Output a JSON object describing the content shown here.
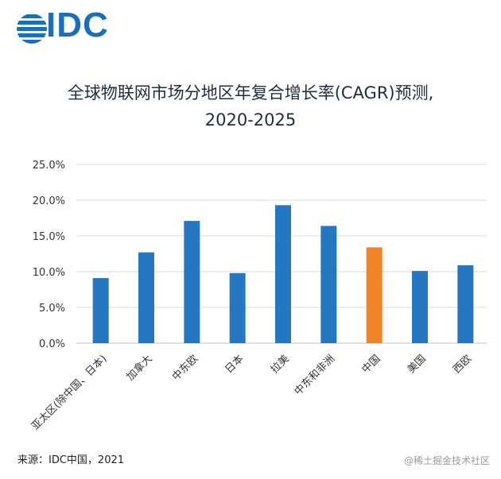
{
  "logo": {
    "text": "IDC",
    "color": "#1c6fb7"
  },
  "chart_data": {
    "type": "bar",
    "title_line1": "全球物联网市场分地区年复合增长率(CAGR)预测,",
    "title_line2": "2020-2025",
    "categories": [
      "亚太区(除中国、日本)",
      "加拿大",
      "中东欧",
      "日本",
      "拉美",
      "中东和非洲",
      "中国",
      "美国",
      "西欧"
    ],
    "values": [
      9.1,
      12.7,
      17.1,
      9.8,
      19.3,
      16.4,
      13.4,
      10.1,
      10.9
    ],
    "highlight_index": 6,
    "yticks": [
      "0.0%",
      "5.0%",
      "10.0%",
      "15.0%",
      "20.0%",
      "25.0%"
    ],
    "ylim": [
      0,
      25
    ],
    "grid": true,
    "colors": {
      "bar": "#2477c0",
      "highlight": "#f08327",
      "grid": "#d9d9d9"
    }
  },
  "footer": {
    "source": "来源：IDC中国，2021",
    "watermark": "@稀土掘金技术社区"
  }
}
